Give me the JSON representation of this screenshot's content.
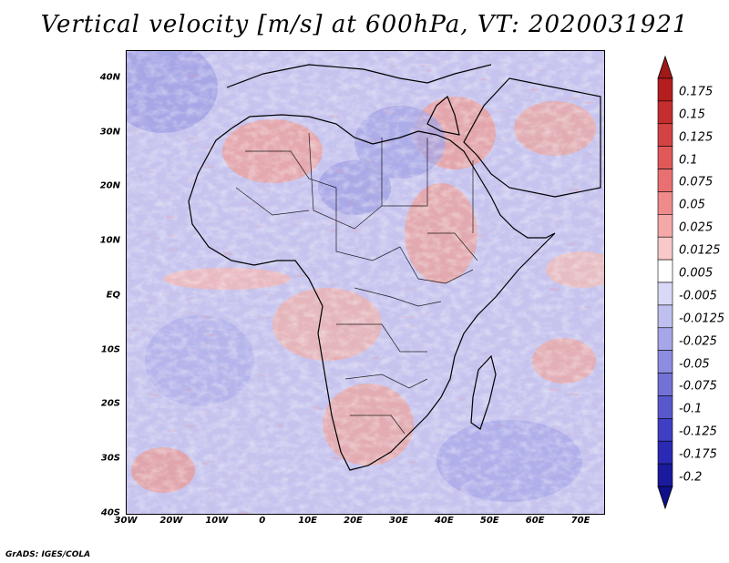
{
  "title": "Vertical velocity [m/s] at 600hPa, VT: 2020031921",
  "credit": "GrADS: IGES/COLA",
  "map": {
    "region": "Africa",
    "projection": "lat-lon",
    "lon_range": [
      -30,
      75
    ],
    "lat_range": [
      -40,
      45
    ],
    "lat_ticks": [
      "40N",
      "30N",
      "20N",
      "10N",
      "EQ",
      "10S",
      "20S",
      "30S",
      "40S"
    ],
    "lat_values": [
      40,
      30,
      20,
      10,
      0,
      -10,
      -20,
      -30,
      -40
    ],
    "lon_ticks": [
      "30W",
      "20W",
      "10W",
      "0",
      "10E",
      "20E",
      "30E",
      "40E",
      "50E",
      "60E",
      "70E"
    ],
    "lon_values": [
      -30,
      -20,
      -10,
      0,
      10,
      20,
      30,
      40,
      50,
      60,
      70
    ]
  },
  "colorbar": {
    "labels": [
      "0.175",
      "0.15",
      "0.125",
      "0.1",
      "0.075",
      "0.05",
      "0.025",
      "0.0125",
      "0.005",
      "-0.005",
      "-0.0125",
      "-0.025",
      "-0.05",
      "-0.075",
      "-0.1",
      "-0.125",
      "-0.175",
      "-0.2"
    ],
    "colors": [
      "#b31e1e",
      "#c42e2e",
      "#d44343",
      "#e05858",
      "#e87070",
      "#ef8b8b",
      "#f4a8a8",
      "#f9c8c8",
      "#ffffff",
      "#d9d9f7",
      "#bfbff0",
      "#a6a6e8",
      "#8c8ce0",
      "#7272d6",
      "#5858cc",
      "#3f3fc2",
      "#2a2ab5",
      "#1a1a9c"
    ],
    "top_arrow_color": "#a01818",
    "bottom_arrow_color": "#10108a"
  }
}
